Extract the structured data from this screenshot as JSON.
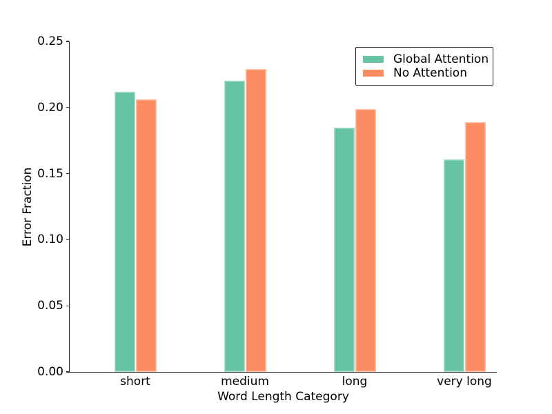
{
  "figure": {
    "background_color": "#ffffff",
    "text_color": "#000000",
    "spine_color": "#2b2b2b"
  },
  "chart_data": {
    "type": "bar",
    "title": "",
    "xlabel": "Word Length Category",
    "ylabel": "Error Fraction",
    "categories": [
      "short",
      "medium",
      "long",
      "very long"
    ],
    "series": [
      {
        "name": "Global Attention",
        "color": "#66c2a5",
        "values": [
          0.212,
          0.22,
          0.185,
          0.161
        ]
      },
      {
        "name": "No Attention",
        "color": "#fc8d62",
        "values": [
          0.206,
          0.229,
          0.199,
          0.189
        ]
      }
    ],
    "ylim": [
      0,
      0.25
    ],
    "yticks": [
      "0.00",
      "0.05",
      "0.10",
      "0.15",
      "0.20",
      "0.25"
    ],
    "grid": false,
    "legend_position": "upper right",
    "legend_entries": [
      "Global Attention",
      "No Attention"
    ]
  }
}
